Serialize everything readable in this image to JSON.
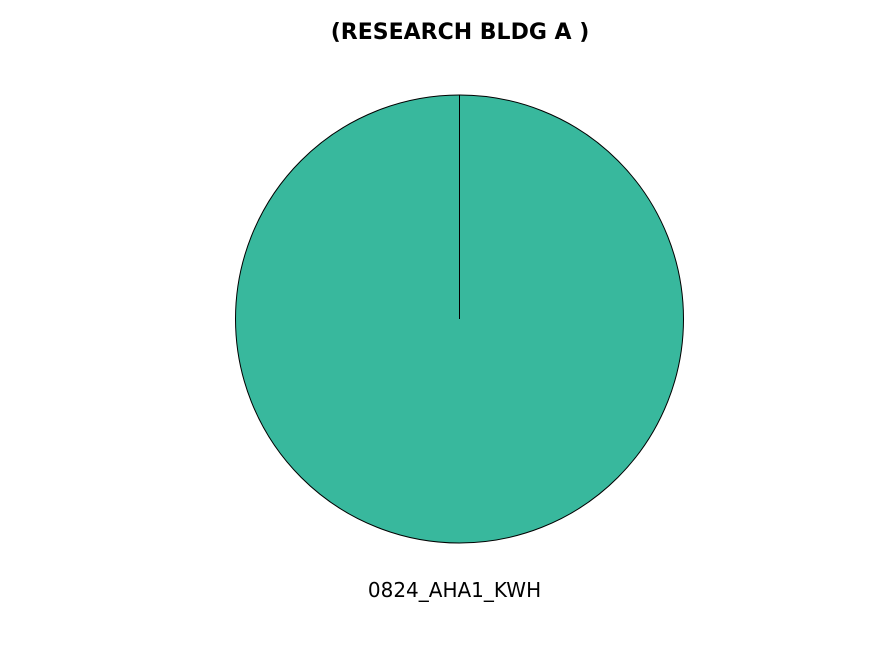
{
  "chart_data": {
    "type": "pie",
    "title": "(RESEARCH BLDG A )",
    "slices": [
      {
        "label": "0824_AHA1_KWH",
        "value": 100,
        "color": "#38b89d"
      }
    ],
    "start_angle": "top",
    "direction": "clockwise",
    "edge_color": "#000000",
    "legend": "none"
  }
}
